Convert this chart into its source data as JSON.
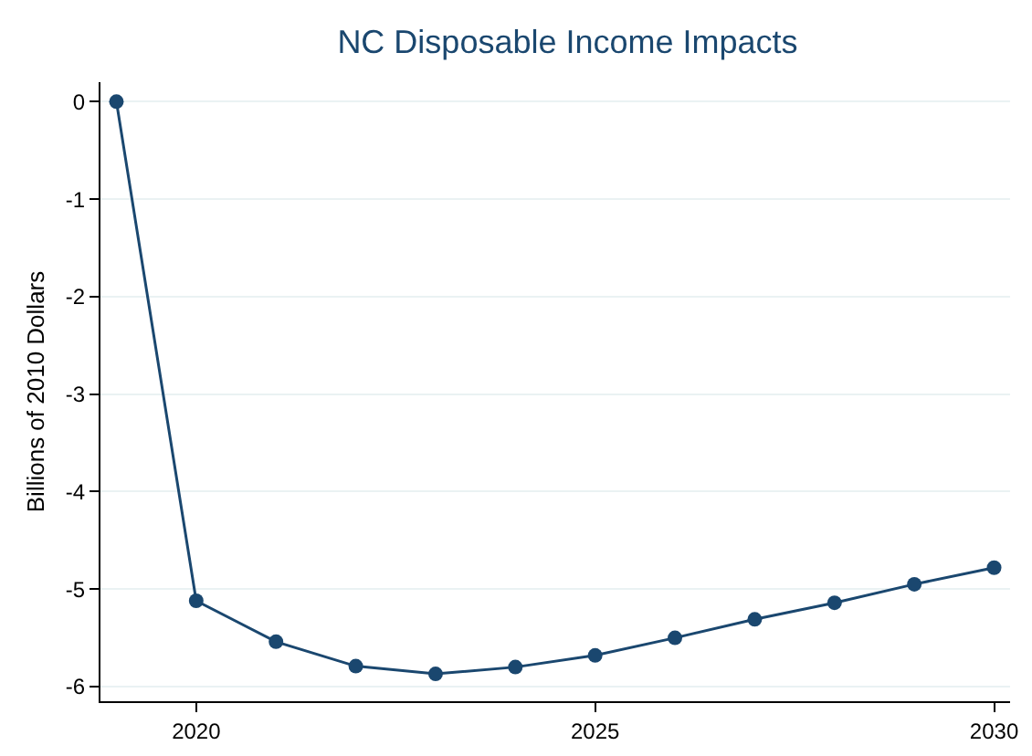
{
  "chart_data": {
    "type": "line",
    "title": "NC Disposable Income Impacts",
    "ylabel": "Billions of 2010 Dollars",
    "x": [
      2019,
      2020,
      2021,
      2022,
      2023,
      2024,
      2025,
      2026,
      2027,
      2028,
      2029,
      2030
    ],
    "series": [
      {
        "color": "#1a476f",
        "values": [
          0,
          -5.12,
          -5.54,
          -5.79,
          -5.87,
          -5.8,
          -5.68,
          -5.5,
          -5.31,
          -5.14,
          -4.95,
          -4.78
        ]
      }
    ],
    "xlim": [
      2018.8,
      2030.2
    ],
    "xticks": [
      2020,
      2025,
      2030
    ],
    "ylim": [
      -6.15,
      0.2
    ],
    "yticks": [
      0,
      -1,
      -2,
      -3,
      -4,
      -5,
      -6
    ],
    "grid": "y",
    "marker": "circle",
    "line_style": "solid"
  }
}
